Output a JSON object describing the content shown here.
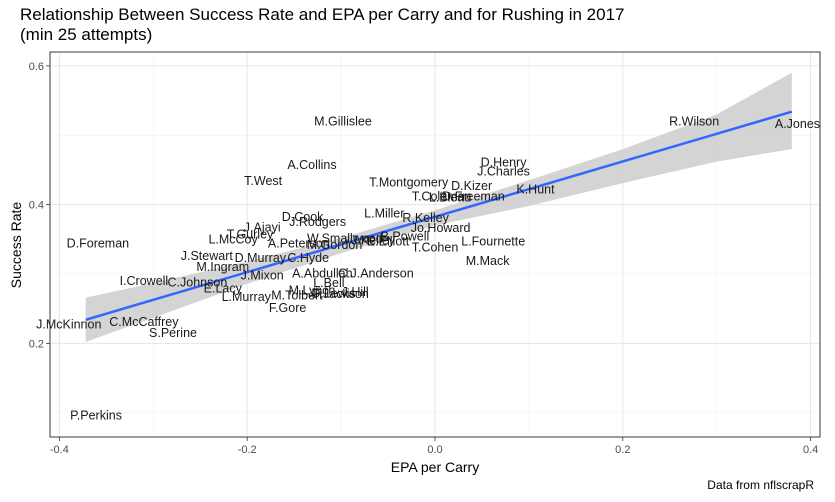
{
  "chart_data": {
    "type": "scatter",
    "title_line1": "Relationship Between Success Rate and EPA per Carry and for Rushing in 2017",
    "title_line2": "(min 25 attempts)",
    "xlabel": "EPA per Carry",
    "ylabel": "Success Rate",
    "caption": "Data from nflscrapR",
    "xlim": [
      -0.41,
      0.41
    ],
    "ylim": [
      0.065,
      0.62
    ],
    "xticks": [
      -0.4,
      -0.2,
      0.0,
      0.2,
      0.4
    ],
    "xtick_labels": [
      "-0.4",
      "-0.2",
      "0.0",
      "0.2",
      "0.4"
    ],
    "yticks": [
      0.2,
      0.4,
      0.6
    ],
    "ytick_labels": [
      "0.2",
      "0.4",
      "0.6"
    ],
    "grid": true,
    "trend_line": {
      "x": [
        -0.372,
        0.38
      ],
      "y": [
        0.234,
        0.534
      ],
      "color": "#3366FF"
    },
    "confidence_band": {
      "x": [
        -0.372,
        -0.3,
        -0.2,
        -0.1,
        0.0,
        0.1,
        0.2,
        0.3,
        0.38
      ],
      "upper": [
        0.266,
        0.287,
        0.318,
        0.352,
        0.392,
        0.435,
        0.48,
        0.53,
        0.59
      ],
      "lower": [
        0.202,
        0.237,
        0.286,
        0.33,
        0.37,
        0.398,
        0.431,
        0.462,
        0.48
      ],
      "color": "#cccccc"
    },
    "points": [
      {
        "label": "M.Gillislee",
        "x": -0.098,
        "y": 0.519
      },
      {
        "label": "R.Wilson",
        "x": 0.276,
        "y": 0.519
      },
      {
        "label": "A.Jones",
        "x": 0.386,
        "y": 0.515
      },
      {
        "label": "D.Henry",
        "x": 0.073,
        "y": 0.46
      },
      {
        "label": "J.Charles",
        "x": 0.073,
        "y": 0.447
      },
      {
        "label": "A.Collins",
        "x": -0.131,
        "y": 0.456
      },
      {
        "label": "T.West",
        "x": -0.183,
        "y": 0.433
      },
      {
        "label": "T.Montgomery",
        "x": -0.028,
        "y": 0.431
      },
      {
        "label": "K.Hunt",
        "x": 0.107,
        "y": 0.421
      },
      {
        "label": "D.Kizer",
        "x": 0.039,
        "y": 0.426
      },
      {
        "label": "T.Coleman",
        "x": 0.007,
        "y": 0.411
      },
      {
        "label": "D.Freeman",
        "x": 0.041,
        "y": 0.411
      },
      {
        "label": "L.Bleau",
        "x": 0.016,
        "y": 0.409
      },
      {
        "label": "L.Miller",
        "x": -0.054,
        "y": 0.386
      },
      {
        "label": "R.Kelley",
        "x": -0.01,
        "y": 0.38
      },
      {
        "label": "D.Cook",
        "x": -0.141,
        "y": 0.381
      },
      {
        "label": "J.Rodgers",
        "x": -0.125,
        "y": 0.374
      },
      {
        "label": "Jo.Howard",
        "x": 0.006,
        "y": 0.365
      },
      {
        "label": "J.Ajayi",
        "x": -0.184,
        "y": 0.366
      },
      {
        "label": "T.Gurley",
        "x": -0.197,
        "y": 0.356
      },
      {
        "label": "L.McCoy",
        "x": -0.215,
        "y": 0.349
      },
      {
        "label": "W.Smallwood",
        "x": -0.096,
        "y": 0.35
      },
      {
        "label": "B.Powell",
        "x": -0.032,
        "y": 0.353
      },
      {
        "label": "L.Fournette",
        "x": 0.062,
        "y": 0.346
      },
      {
        "label": "J.Kelley",
        "x": -0.066,
        "y": 0.347
      },
      {
        "label": "E.Elliott",
        "x": -0.05,
        "y": 0.346
      },
      {
        "label": "A.Peterson",
        "x": -0.145,
        "y": 0.343
      },
      {
        "label": "M.Gordon",
        "x": -0.107,
        "y": 0.341
      },
      {
        "label": "T.Cohen",
        "x": 0.0,
        "y": 0.337
      },
      {
        "label": "D.Foreman",
        "x": -0.359,
        "y": 0.343
      },
      {
        "label": "J.Stewart",
        "x": -0.243,
        "y": 0.325
      },
      {
        "label": "D.Murray",
        "x": -0.186,
        "y": 0.322
      },
      {
        "label": "C.Hyde",
        "x": -0.135,
        "y": 0.322
      },
      {
        "label": "M.Mack",
        "x": 0.056,
        "y": 0.318
      },
      {
        "label": "M.Ingram",
        "x": -0.226,
        "y": 0.309
      },
      {
        "label": "J.Mixon",
        "x": -0.184,
        "y": 0.297
      },
      {
        "label": "A.Abdullah",
        "x": -0.12,
        "y": 0.3
      },
      {
        "label": "C.J.Anderson",
        "x": -0.063,
        "y": 0.3
      },
      {
        "label": "I.Crowell",
        "x": -0.31,
        "y": 0.289
      },
      {
        "label": "C.Johnson",
        "x": -0.253,
        "y": 0.287
      },
      {
        "label": "L.Bell",
        "x": -0.113,
        "y": 0.286
      },
      {
        "label": "E.Lacy",
        "x": -0.226,
        "y": 0.278
      },
      {
        "label": "M.Lynch",
        "x": -0.131,
        "y": 0.275
      },
      {
        "label": "J.Hill",
        "x": -0.085,
        "y": 0.273
      },
      {
        "label": "D.Lewis",
        "x": -0.108,
        "y": 0.271
      },
      {
        "label": "F.Jackson",
        "x": -0.1,
        "y": 0.27
      },
      {
        "label": "L.Murray",
        "x": -0.201,
        "y": 0.266
      },
      {
        "label": "M.Tolbert",
        "x": -0.147,
        "y": 0.268
      },
      {
        "label": "F.Gore",
        "x": -0.157,
        "y": 0.25
      },
      {
        "label": "J.McKinnon",
        "x": -0.39,
        "y": 0.226
      },
      {
        "label": "C.McCaffrey",
        "x": -0.31,
        "y": 0.23
      },
      {
        "label": "S.Perine",
        "x": -0.279,
        "y": 0.214
      },
      {
        "label": "P.Perkins",
        "x": -0.361,
        "y": 0.095
      }
    ]
  }
}
